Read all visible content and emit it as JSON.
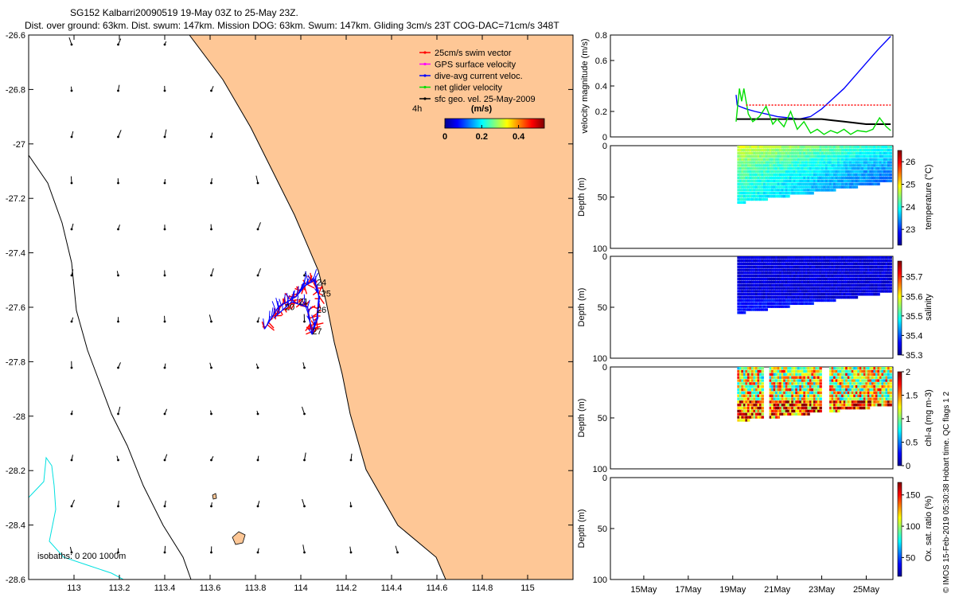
{
  "title": {
    "line1": "SG152 Kalbarri20090519 19-May 03Z to 25-May 23Z.",
    "line2": "Dist. over ground: 63km. Dist. swum: 147km. Mission DOG: 63km. Swum: 147km. Gliding 3cm/s 23T COG-DAC=71cm/s 348T"
  },
  "credit": "© IMOS 15-Feb-2019 05:30:38 Hobart time. QC flags 1  2",
  "chart_data": [
    {
      "type": "scatter",
      "name": "map",
      "x_ticks": [
        "113",
        "113.2",
        "113.4",
        "113.6",
        "113.8",
        "114",
        "114.2",
        "114.4",
        "114.6",
        "114.8",
        "115"
      ],
      "y_ticks": [
        "-26.6",
        "-26.8",
        "-27",
        "-27.2",
        "-27.4",
        "-27.6",
        "-27.8",
        "-28",
        "-28.2",
        "-28.4",
        "-28.6"
      ],
      "xlim": [
        112.8,
        115.2
      ],
      "ylim": [
        -28.6,
        -26.6
      ],
      "legend": {
        "placement": "top-right",
        "entries": [
          {
            "label": "25cm/s swim vector",
            "color": "#ff0000"
          },
          {
            "label": "GPS surface velocity",
            "color": "#ff00ff"
          },
          {
            "label": "dive-avg current veloc.",
            "color": "#0000ff"
          },
          {
            "label": "net glider velocity",
            "color": "#00dd00"
          },
          {
            "label": "sfc geo. vel. 25-May-2009",
            "color": "#000000"
          }
        ]
      },
      "colorbar": {
        "label": "(m/s)",
        "ticks": [
          "0",
          "0.2",
          "0.4"
        ],
        "interval_label": "4h"
      },
      "isobaths_label": "isobaths: 0   200  1000m",
      "day_labels": [
        {
          "text": "24",
          "lon": 114.07,
          "lat": -27.52
        },
        {
          "text": "25",
          "lon": 114.09,
          "lat": -27.56
        },
        {
          "text": "21",
          "lon": 113.99,
          "lat": -27.59
        },
        {
          "text": "20",
          "lon": 113.93,
          "lat": -27.61
        },
        {
          "text": "26",
          "lon": 114.07,
          "lat": -27.62
        },
        {
          "text": "27",
          "lon": 114.05,
          "lat": -27.7
        }
      ],
      "land_color": "#fec796"
    },
    {
      "type": "line",
      "name": "velocity",
      "ylabel": "velocity magnitude (m/s)",
      "ylim": [
        0,
        0.8
      ],
      "y_ticks": [
        "0",
        "0.2",
        "0.4",
        "0.6",
        "0.8"
      ],
      "xlim": [
        13.5,
        26.2
      ],
      "series": [
        {
          "color": "#0000ff",
          "x": [
            19.15,
            19.2,
            19.3,
            19.6,
            20,
            20.5,
            21,
            21.5,
            22,
            22.5,
            23,
            23.5,
            24,
            24.5,
            25,
            25.5,
            26.1
          ],
          "y": [
            0.33,
            0.25,
            0.24,
            0.22,
            0.2,
            0.18,
            0.16,
            0.15,
            0.14,
            0.16,
            0.22,
            0.3,
            0.38,
            0.48,
            0.58,
            0.68,
            0.79
          ]
        },
        {
          "color": "#000000",
          "x": [
            19.15,
            20,
            21,
            22,
            23,
            23.5,
            24,
            25,
            26.1
          ],
          "y": [
            0.14,
            0.14,
            0.14,
            0.14,
            0.14,
            0.13,
            0.12,
            0.1,
            0.1
          ]
        },
        {
          "color": "#00dd00",
          "x": [
            19.15,
            19.3,
            19.4,
            19.5,
            19.7,
            19.9,
            20.2,
            20.5,
            20.8,
            21,
            21.3,
            21.6,
            21.9,
            22.2,
            22.5,
            22.8,
            23.1,
            23.4,
            23.7,
            24,
            24.3,
            24.6,
            25,
            25.3,
            25.6,
            25.9,
            26.1
          ],
          "y": [
            0.12,
            0.38,
            0.28,
            0.38,
            0.18,
            0.12,
            0.16,
            0.24,
            0.1,
            0.14,
            0.08,
            0.2,
            0.06,
            0.12,
            0.03,
            0.06,
            0.02,
            0.05,
            0.03,
            0.06,
            0.02,
            0.05,
            0.04,
            0.06,
            0.15,
            0.08,
            0.05
          ]
        },
        {
          "color": "#ff0000",
          "x": [
            19.6,
            26.1
          ],
          "y": [
            0.25,
            0.25
          ]
        }
      ]
    },
    {
      "type": "heatmap",
      "name": "temperature",
      "ylabel": "Depth (m)",
      "cbar_label": "temperature (°C)",
      "cbar_ticks": [
        "23",
        "24",
        "25",
        "26"
      ],
      "cbar_range": [
        22.3,
        26.5
      ],
      "ylim": [
        100,
        0
      ],
      "y_ticks": [
        "0",
        "50",
        "100"
      ],
      "xlim": [
        13.5,
        26.2
      ]
    },
    {
      "type": "heatmap",
      "name": "salinity",
      "ylabel": "Depth (m)",
      "cbar_label": "salinity",
      "cbar_ticks": [
        "35.3",
        "35.4",
        "35.5",
        "35.6",
        "35.7"
      ],
      "cbar_range": [
        35.3,
        35.78
      ],
      "ylim": [
        100,
        0
      ],
      "y_ticks": [
        "0",
        "50",
        "100"
      ],
      "xlim": [
        13.5,
        26.2
      ]
    },
    {
      "type": "heatmap",
      "name": "chlorophyll",
      "ylabel": "Depth (m)",
      "cbar_label": "chl-a (mg m-3)",
      "cbar_ticks": [
        "0",
        "0.5",
        "1",
        "1.5",
        "2"
      ],
      "cbar_range": [
        0,
        2
      ],
      "ylim": [
        100,
        0
      ],
      "y_ticks": [
        "0",
        "50",
        "100"
      ],
      "xlim": [
        13.5,
        26.2
      ]
    },
    {
      "type": "heatmap",
      "name": "oxygen",
      "ylabel": "Depth (m)",
      "cbar_label": "Ox. sat. ratio (%)",
      "cbar_ticks": [
        "50",
        "100",
        "150"
      ],
      "cbar_range": [
        20,
        170
      ],
      "ylim": [
        100,
        0
      ],
      "y_ticks": [
        "0",
        "50",
        "100"
      ],
      "xlim": [
        13.5,
        26.2
      ],
      "x_ticks": [
        {
          "label": "15May",
          "day": 15
        },
        {
          "label": "17May",
          "day": 17
        },
        {
          "label": "19May",
          "day": 19
        },
        {
          "label": "21May",
          "day": 21
        },
        {
          "label": "23May",
          "day": 23
        },
        {
          "label": "25May",
          "day": 25
        }
      ]
    }
  ]
}
